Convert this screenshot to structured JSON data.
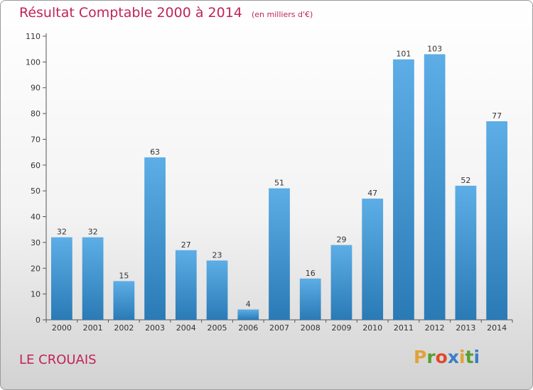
{
  "header": {
    "title": "Résultat Comptable 2000 à 2014",
    "subtitle": "(en milliers d'€)"
  },
  "footer": {
    "commune": "LE CROUAIS",
    "logo_text": "Proxiti"
  },
  "colors": {
    "title": "#c0235a",
    "bar_top": "#5dade6",
    "bar_bottom": "#2a7ab6",
    "logo_letters": [
      "#e2a23a",
      "#5a9e2f",
      "#e04a2a",
      "#3a7ec9",
      "#e2a23a",
      "#5a9e2f",
      "#3a7ec9"
    ]
  },
  "chart_data": {
    "type": "bar",
    "title": "Résultat Comptable 2000 à 2014",
    "xlabel": "",
    "ylabel": "",
    "categories": [
      "2000",
      "2001",
      "2002",
      "2003",
      "2004",
      "2005",
      "2006",
      "2007",
      "2008",
      "2009",
      "2010",
      "2011",
      "2012",
      "2013",
      "2014"
    ],
    "values": [
      32,
      32,
      15,
      63,
      27,
      23,
      4,
      51,
      16,
      29,
      47,
      101,
      103,
      52,
      77
    ],
    "ylim": [
      0,
      110
    ],
    "yticks": [
      0,
      10,
      20,
      30,
      40,
      50,
      60,
      70,
      80,
      90,
      100,
      110
    ],
    "grid": false,
    "legend": "none"
  }
}
